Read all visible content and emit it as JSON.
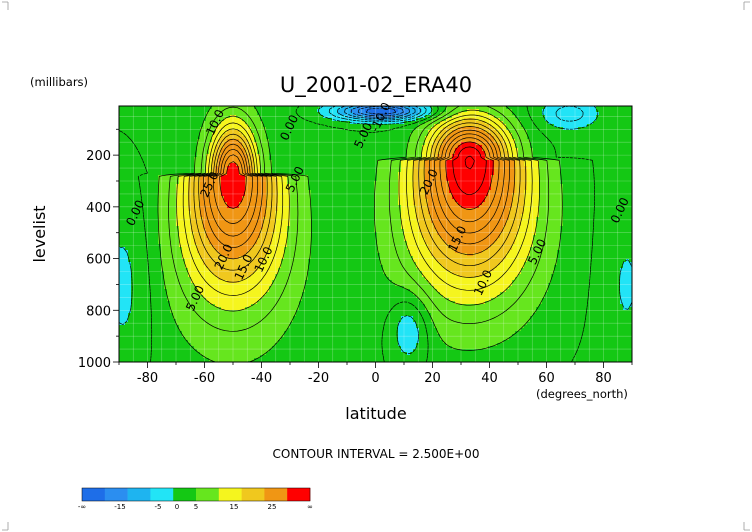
{
  "chart_data": {
    "type": "heatmap",
    "subtype": "filled-contour",
    "title": "U_2001-02_ERA40",
    "xlabel": "latitude",
    "ylabel": "levelist",
    "x_units": "(degrees_north)",
    "y_units": "(millibars)",
    "xlim": [
      -90,
      90
    ],
    "ylim": [
      1000,
      10
    ],
    "y_inverted": true,
    "xticks": [
      -80,
      -60,
      -40,
      -20,
      0,
      20,
      40,
      60,
      80
    ],
    "yticks": [
      200,
      400,
      600,
      800,
      1000
    ],
    "grid": true,
    "contour_interval_label": "CONTOUR INTERVAL = 2.500E+00",
    "contour_interval": 2.5,
    "jets": [
      {
        "lat": -50,
        "level": 280,
        "max": 29,
        "lat_width_upper": 8,
        "lat_width_lower": 16,
        "depth_up": 190,
        "depth_down": 430
      },
      {
        "lat": 33,
        "level": 215,
        "max": 33,
        "lat_width_upper": 14,
        "lat_width_lower": 20,
        "depth_up": 160,
        "depth_down": 470
      }
    ],
    "easterly_cores": [
      {
        "lat": 12,
        "level": 870,
        "min": -7
      },
      {
        "lat": 2,
        "level": 30,
        "min": -20
      },
      {
        "lat": 68,
        "level": 40,
        "min": -6
      }
    ],
    "contour_labels": [
      {
        "text": "10.0",
        "lat": -55,
        "level": 80
      },
      {
        "text": "25.0",
        "lat": -57,
        "level": 320
      },
      {
        "text": "0.00",
        "lat": -29,
        "level": 100
      },
      {
        "text": "5.00",
        "lat": -27,
        "level": 300
      },
      {
        "text": "0.00",
        "lat": -83,
        "level": 430
      },
      {
        "text": "20.0",
        "lat": -52,
        "level": 600
      },
      {
        "text": "15.0",
        "lat": -45,
        "level": 640
      },
      {
        "text": "10.0",
        "lat": -38,
        "level": 610
      },
      {
        "text": "5.00",
        "lat": -62,
        "level": 760
      },
      {
        "text": "5.00",
        "lat": -3,
        "level": 130
      },
      {
        "text": "-10.0",
        "lat": 3,
        "level": 60
      },
      {
        "text": "20.0",
        "lat": 20,
        "level": 310
      },
      {
        "text": "15.0",
        "lat": 30,
        "level": 530
      },
      {
        "text": "10.0",
        "lat": 39,
        "level": 700
      },
      {
        "text": "5.00",
        "lat": 58,
        "level": 580
      },
      {
        "text": "0.00",
        "lat": 87,
        "level": 420
      }
    ],
    "legend": {
      "placement": "bottom-left",
      "bins": [
        {
          "color": "#1e6ee8"
        },
        {
          "color": "#2b8ef0"
        },
        {
          "color": "#1eb4f0"
        },
        {
          "color": "#22e4f6"
        },
        {
          "color": "#14c814"
        },
        {
          "color": "#66e61e"
        },
        {
          "color": "#f5f51e"
        },
        {
          "color": "#f0c81e"
        },
        {
          "color": "#f09614"
        },
        {
          "color": "#ff0000"
        }
      ],
      "labels": [
        {
          "text": "-∞",
          "boundary": 0
        },
        {
          "text": "-15",
          "boundary": 2
        },
        {
          "text": "-5",
          "boundary": 4
        },
        {
          "text": "0",
          "boundary": 5
        },
        {
          "text": "5",
          "boundary": 6
        },
        {
          "text": "15",
          "boundary": 8
        },
        {
          "text": "25",
          "boundary": 10
        },
        {
          "text": "∞",
          "boundary": 12
        }
      ]
    }
  }
}
